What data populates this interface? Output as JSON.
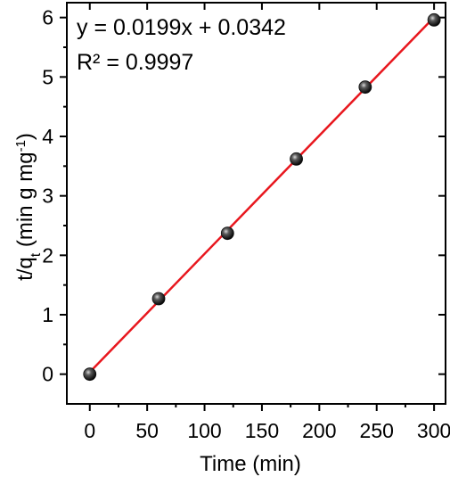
{
  "chart_data": {
    "type": "scatter",
    "xlabel": "Time (min)",
    "ylabel": {
      "prefix": "t/q",
      "sub": "t",
      "units": " (min g mg",
      "sup": "-1",
      "close": ")"
    },
    "xlim": [
      -20,
      310
    ],
    "ylim": [
      -0.5,
      6.25
    ],
    "xticks": [
      0,
      50,
      100,
      150,
      200,
      250,
      300
    ],
    "yticks": [
      0,
      1,
      2,
      3,
      4,
      5,
      6
    ],
    "points": [
      {
        "x": 0,
        "y": 0.0
      },
      {
        "x": 60,
        "y": 1.27
      },
      {
        "x": 120,
        "y": 2.37
      },
      {
        "x": 180,
        "y": 3.62
      },
      {
        "x": 240,
        "y": 4.83
      },
      {
        "x": 300,
        "y": 5.96
      }
    ],
    "fit": {
      "slope": 0.0199,
      "intercept": 0.0342,
      "x_range": [
        0,
        300
      ],
      "color": "#e8171e"
    },
    "annotations": [
      "y = 0.0199x + 0.0342",
      "R² = 0.9997"
    ],
    "marker_color": "#111111",
    "grid": false
  }
}
